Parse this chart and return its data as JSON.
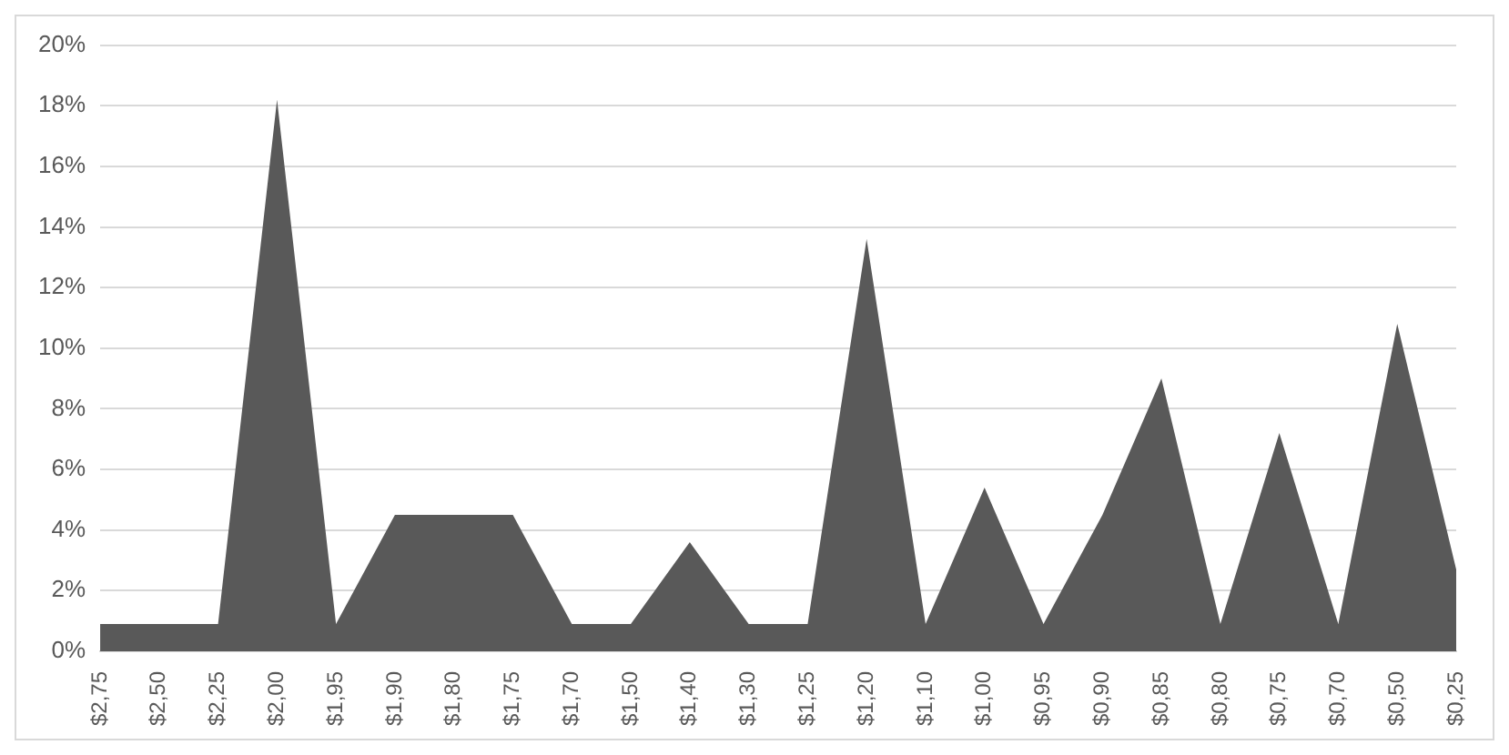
{
  "chart_data": {
    "type": "area",
    "categories": [
      "$2,75",
      "$2,50",
      "$2,25",
      "$2,00",
      "$1,95",
      "$1,90",
      "$1,80",
      "$1,75",
      "$1,70",
      "$1,50",
      "$1,40",
      "$1,30",
      "$1,25",
      "$1,20",
      "$1,10",
      "$1,00",
      "$0,95",
      "$0,90",
      "$0,85",
      "$0,80",
      "$0,75",
      "$0,70",
      "$0,50",
      "$0,25"
    ],
    "values": [
      0.9,
      0.9,
      0.9,
      18.2,
      0.9,
      4.5,
      4.5,
      4.5,
      0.9,
      0.9,
      3.6,
      0.9,
      0.9,
      13.6,
      0.9,
      5.4,
      0.9,
      4.5,
      9.0,
      0.9,
      7.2,
      0.9,
      10.8,
      2.7
    ],
    "color": "#595959",
    "ylim": [
      0,
      20
    ],
    "yticks": [
      {
        "value": 0,
        "label": "0%"
      },
      {
        "value": 2,
        "label": "2%"
      },
      {
        "value": 4,
        "label": "4%"
      },
      {
        "value": 6,
        "label": "6%"
      },
      {
        "value": 8,
        "label": "8%"
      },
      {
        "value": 10,
        "label": "10%"
      },
      {
        "value": 12,
        "label": "12%"
      },
      {
        "value": 14,
        "label": "14%"
      },
      {
        "value": 16,
        "label": "16%"
      },
      {
        "value": 18,
        "label": "18%"
      },
      {
        "value": 20,
        "label": "20%"
      }
    ],
    "grid": "y"
  }
}
